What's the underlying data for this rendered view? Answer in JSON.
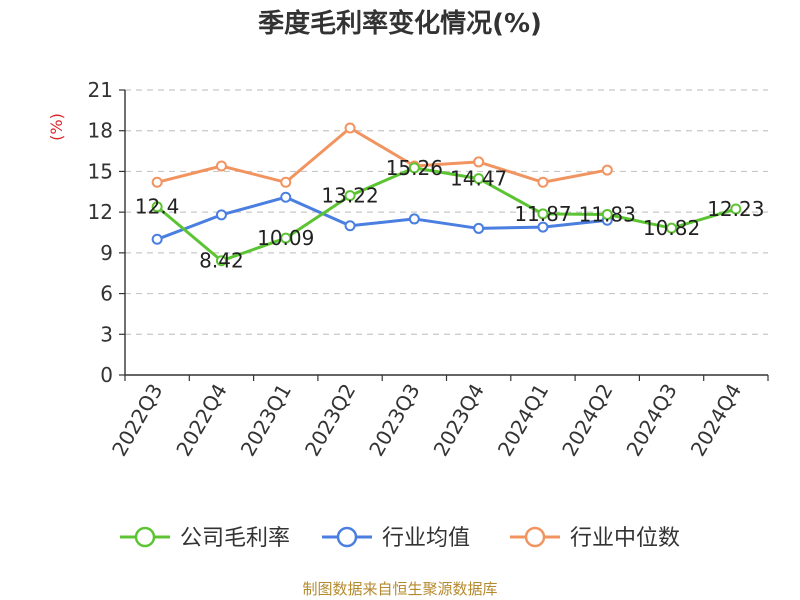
{
  "chart_data": {
    "type": "line",
    "title": "季度毛利率变化情况(%)",
    "ylabel": "(%)",
    "xlabel": "",
    "categories": [
      "2022Q3",
      "2022Q4",
      "2023Q1",
      "2023Q2",
      "2023Q3",
      "2023Q4",
      "2024Q1",
      "2024Q2",
      "2024Q3",
      "2024Q4"
    ],
    "ylim": [
      0,
      21
    ],
    "yticks": [
      0,
      3,
      6,
      9,
      12,
      15,
      18,
      21
    ],
    "grid": true,
    "legend_position": "bottom",
    "series": [
      {
        "name": "公司毛利率",
        "color": "#5cc433",
        "labels": true,
        "values": [
          12.4,
          8.42,
          10.09,
          13.22,
          15.26,
          14.47,
          11.87,
          11.83,
          10.82,
          12.23
        ]
      },
      {
        "name": "行业均值",
        "color": "#4a7ee0",
        "labels": false,
        "values": [
          10.0,
          11.8,
          13.1,
          11.0,
          11.5,
          10.8,
          10.9,
          11.4,
          null,
          null
        ]
      },
      {
        "name": "行业中位数",
        "color": "#f29460",
        "labels": false,
        "values": [
          14.2,
          15.4,
          14.2,
          18.2,
          15.4,
          15.7,
          14.2,
          15.1,
          null,
          null
        ]
      }
    ],
    "source": "制图数据来自恒生聚源数据库"
  }
}
